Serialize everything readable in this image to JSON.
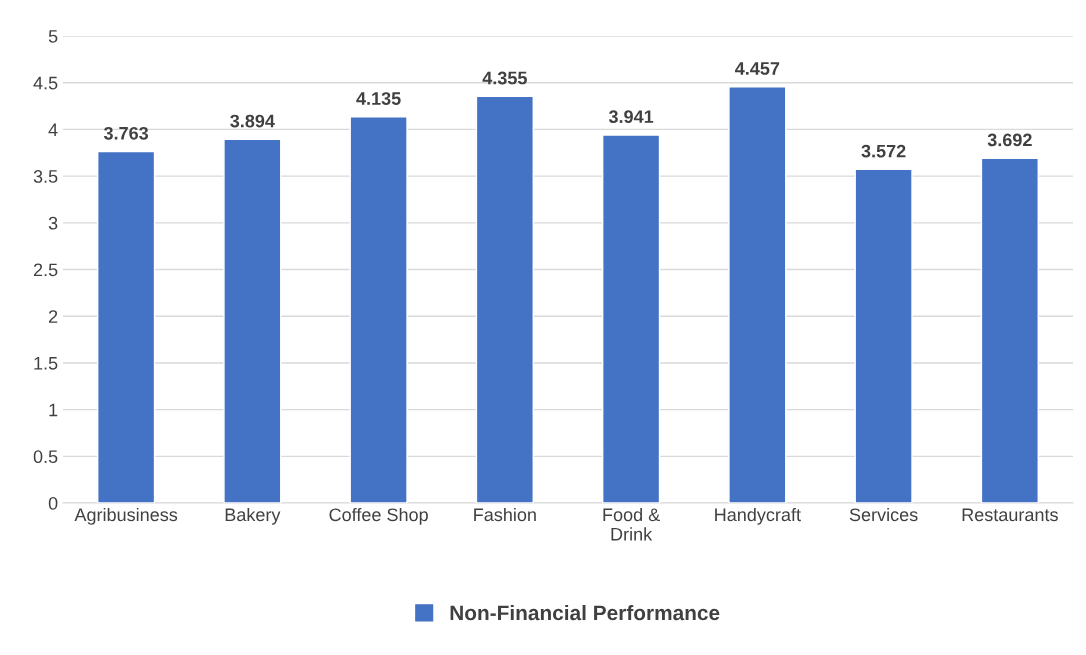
{
  "chart_data": {
    "type": "bar",
    "categories": [
      "Agribusiness",
      "Bakery",
      "Coffee Shop",
      "Fashion",
      "Food &\nDrink",
      "Handycraft",
      "Services",
      "Restaurants"
    ],
    "series": [
      {
        "name": "Non-Financial Performance",
        "color": "#4472c4",
        "values": [
          3.763,
          3.894,
          4.135,
          4.355,
          3.941,
          4.457,
          3.572,
          3.692
        ]
      }
    ],
    "ylim": [
      0,
      5
    ],
    "yticks": [
      0,
      0.5,
      1,
      1.5,
      2,
      2.5,
      3,
      3.5,
      4,
      4.5,
      5
    ],
    "grid": "y",
    "legend": "bottom",
    "data_labels": true
  }
}
